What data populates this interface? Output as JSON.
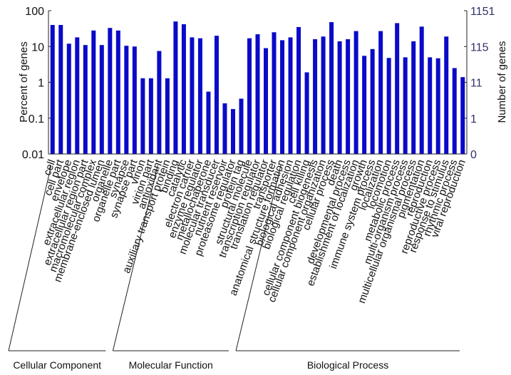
{
  "chart_data": {
    "type": "bar",
    "y_label": "Percent of genes",
    "y2_label": "Number of genes",
    "log_scale": true,
    "color": "#0a0ac8",
    "groups": [
      {
        "name": "Cellular Component",
        "categories": [
          "cell",
          "cell part",
          "envelope",
          "extracellular region",
          "extracellular region part",
          "macromolecular complex",
          "membrane-enclosed lumen",
          "organelle",
          "organelle part",
          "synapse",
          "synapse part",
          "virion",
          "virion part"
        ]
      },
      {
        "name": "Molecular Function",
        "categories": [
          "antioxidant",
          "auxiliary transport protein",
          "binding",
          "catalytic",
          "electron carrier",
          "enzyme regulator",
          "metallochaperone",
          "molecular transducer",
          "nutrient reservoir",
          "proteasome regulator",
          "protein tag",
          "structural molecule",
          "transcription regulator",
          "translation regulator",
          "transporter"
        ]
      },
      {
        "name": "Biological Process",
        "categories": [
          "anatomical structure formation",
          "biological adhesion",
          "biological regulation",
          "cell killing",
          "cellular component biogenesis",
          "cellular component organization",
          "cellular process",
          "death",
          "developmental process",
          "establishment of localization",
          "growth",
          "immune system process",
          "localization",
          "locomotion",
          "metabolic process",
          "multi-organism process",
          "multicellular organismal process",
          "pigmentation",
          "reproduction",
          "reproductive process",
          "response to stimulus",
          "rhythmic process",
          "viral reproduction"
        ]
      }
    ],
    "values": [
      40,
      40,
      12,
      18,
      11,
      28,
      11,
      33,
      28,
      10.5,
      10,
      1.3,
      1.3,
      7.5,
      1.3,
      50,
      42,
      18,
      17,
      0.55,
      20,
      0.26,
      0.18,
      0.35,
      17,
      22,
      9,
      25,
      15,
      18,
      35,
      1.9,
      16,
      19,
      48,
      14,
      16,
      27,
      5.5,
      8.5,
      27,
      4.8,
      45,
      5,
      14,
      36,
      5,
      4.7,
      19,
      2.5,
      1.4
    ],
    "ylim": [
      0.01,
      100
    ],
    "yticks": [
      0.01,
      0.1,
      1,
      10,
      100
    ],
    "y2lim": [
      0.1151,
      1151
    ],
    "y2ticks": [
      {
        "value": 0.1151,
        "label": "0"
      },
      {
        "value": 1.151,
        "label": "1"
      },
      {
        "value": 11.51,
        "label": "11"
      },
      {
        "value": 115.1,
        "label": "115"
      },
      {
        "value": 1151,
        "label": "1151"
      }
    ]
  }
}
